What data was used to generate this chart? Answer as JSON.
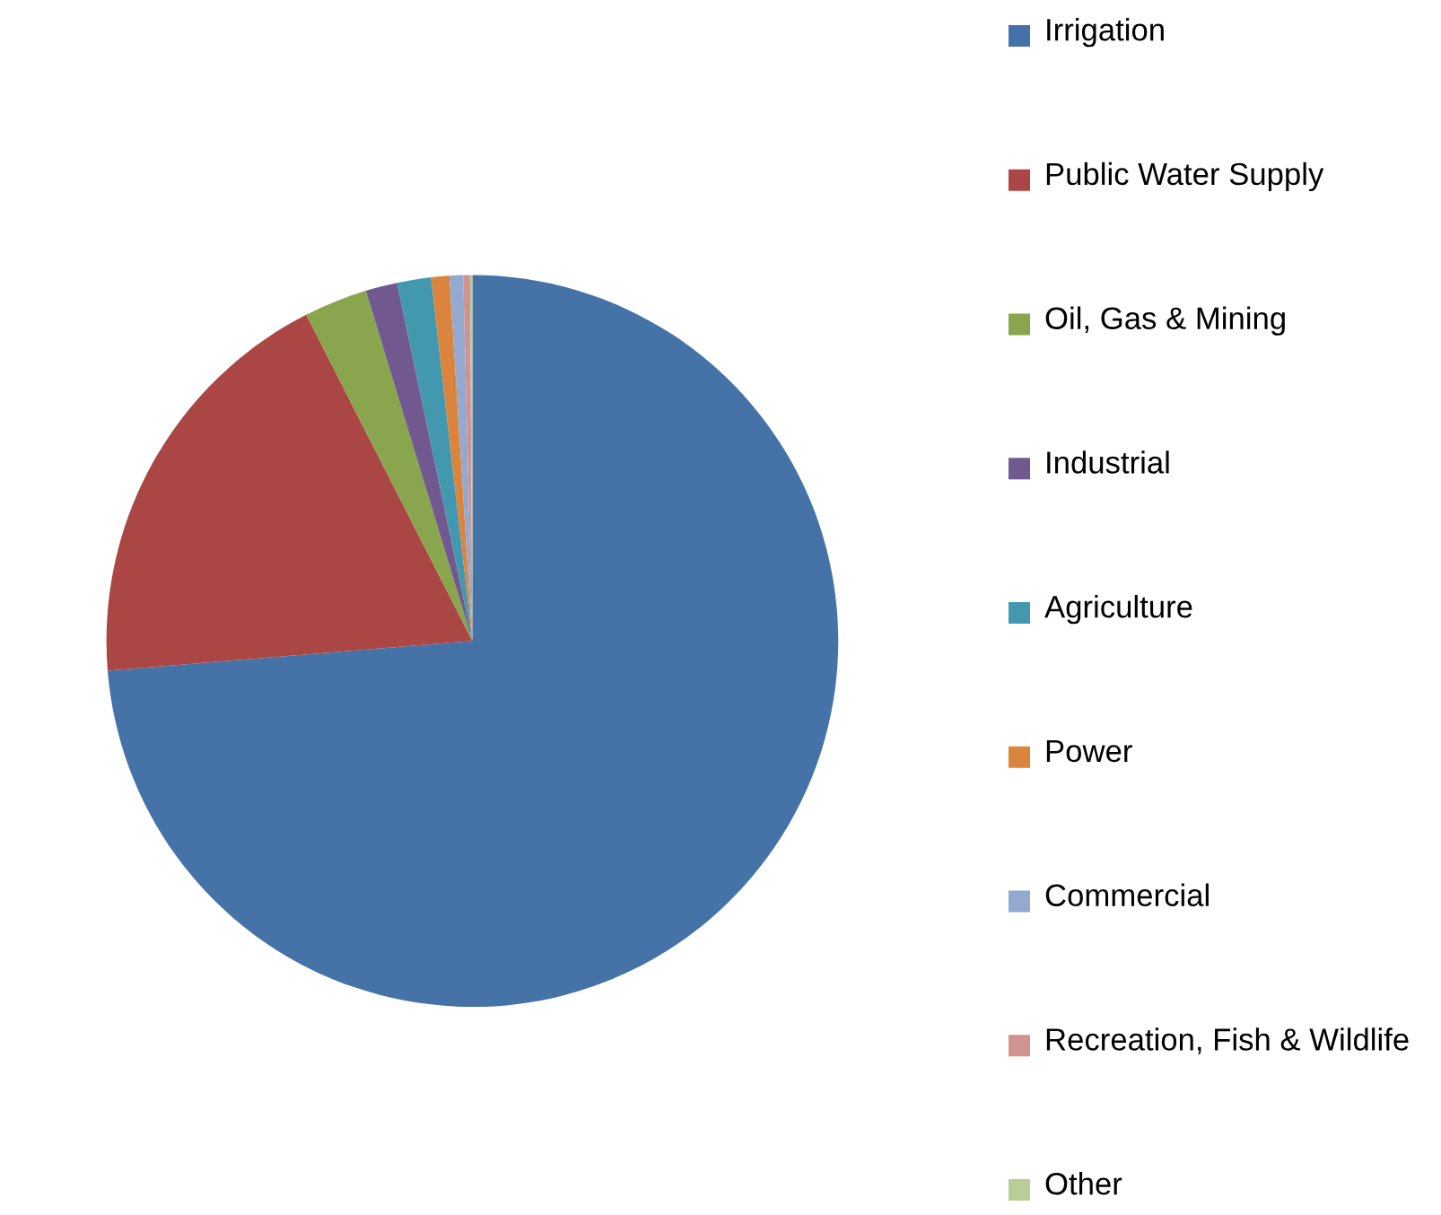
{
  "chart_data": {
    "type": "pie",
    "categories": [
      "Irrigation",
      "Public Water Supply",
      "Oil, Gas & Mining",
      "Industrial",
      "Agriculture",
      "Power",
      "Commercial",
      "Recreation, Fish & Wildlife",
      "Other"
    ],
    "values": [
      73.7,
      18.8,
      2.8,
      1.4,
      1.5,
      0.8,
      0.6,
      0.3,
      0.1
    ],
    "colors": [
      "#4572a7",
      "#aa4643",
      "#89a54e",
      "#71588f",
      "#4198af",
      "#db843d",
      "#93a9cf",
      "#d19392",
      "#b9cd96"
    ],
    "legend": "right"
  }
}
